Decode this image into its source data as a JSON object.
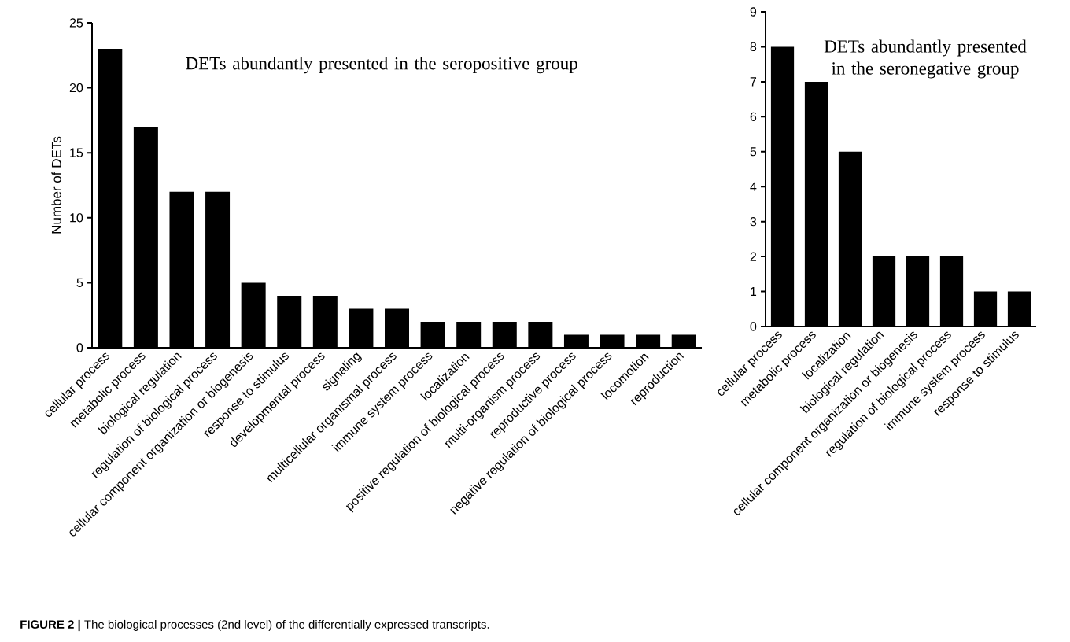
{
  "chart_data": [
    {
      "type": "bar",
      "title": "DETs abundantly presented in the seropositive group",
      "ylabel": "Number of DETs",
      "categories": [
        "cellular process",
        "metabolic process",
        "biological regulation",
        "regulation of biological process",
        "cellular component organization or biogenesis",
        "response to stimulus",
        "developmental process",
        "signaling",
        "multicellular organismal process",
        "immune system process",
        "localization",
        "positive regulation of biological process",
        "multi-organism process",
        "reproductive process",
        "negative regulation of biological process",
        "locomotion",
        "reproduction"
      ],
      "values": [
        23,
        17,
        12,
        12,
        5,
        4,
        4,
        3,
        3,
        2,
        2,
        2,
        2,
        1,
        1,
        1,
        1
      ],
      "color": "#000000",
      "ylim": [
        0,
        25
      ],
      "yticks": [
        0,
        5,
        10,
        15,
        20,
        25
      ],
      "annotations": [
        "**FIGURE 2 |** The biological processes (2nd level) of the differentially expressed transcripts."
      ]
    },
    {
      "type": "bar",
      "title": "DETs abundantly presented in the seronegative group",
      "categories": [
        "cellular process",
        "metabolic process",
        "localization",
        "biological regulation",
        "cellular component organization or biogenesis",
        "regulation of biological process",
        "immune system process",
        "response to stimulus"
      ],
      "values": [
        8,
        7,
        5,
        2,
        2,
        2,
        1,
        1
      ],
      "color": "#000000",
      "ylim": [
        0,
        9
      ],
      "yticks": [
        0,
        1,
        2,
        3,
        4,
        5,
        6,
        7,
        8,
        9
      ]
    }
  ]
}
